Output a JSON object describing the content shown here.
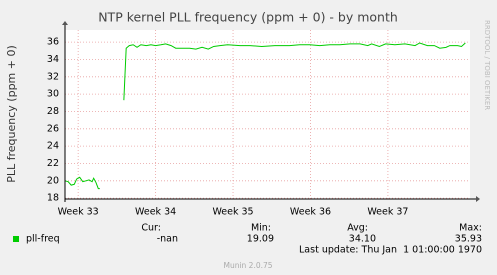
{
  "chart_data": {
    "type": "line",
    "title": "NTP kernel PLL frequency (ppm + 0) - by month",
    "y_label": "PLL frequency (ppm + 0)",
    "watermark": "RRDTOOL / TOBI OETIKER",
    "x": [
      32.83,
      32.87,
      32.91,
      32.95,
      32.98,
      33.02,
      33.06,
      33.1,
      33.14,
      33.18,
      33.2,
      33.23,
      33.26,
      33.28,
      33.45,
      33.59,
      33.62,
      33.66,
      33.71,
      33.76,
      33.81,
      33.88,
      33.94,
      34.0,
      34.07,
      34.13,
      34.2,
      34.26,
      34.34,
      34.44,
      34.52,
      34.6,
      34.68,
      34.75,
      34.83,
      34.93,
      35.09,
      35.22,
      35.37,
      35.54,
      35.73,
      35.86,
      35.99,
      36.12,
      36.25,
      36.38,
      36.51,
      36.64,
      36.74,
      36.79,
      36.89,
      36.97,
      37.09,
      37.22,
      37.35,
      37.41,
      37.51,
      37.6,
      37.67,
      37.75,
      37.8,
      37.9,
      37.95,
      38.0
    ],
    "series": [
      {
        "name": "pll-freq",
        "color": "#00cc00",
        "values": [
          20.0,
          19.9,
          19.5,
          19.6,
          20.2,
          20.4,
          19.9,
          20.0,
          20.1,
          19.9,
          20.3,
          19.8,
          19.1,
          19.1,
          null,
          29.3,
          35.3,
          35.6,
          35.7,
          35.4,
          35.7,
          35.6,
          35.7,
          35.6,
          35.7,
          35.8,
          35.6,
          35.3,
          35.3,
          35.3,
          35.2,
          35.4,
          35.2,
          35.5,
          35.6,
          35.7,
          35.6,
          35.6,
          35.5,
          35.6,
          35.6,
          35.7,
          35.7,
          35.6,
          35.7,
          35.7,
          35.8,
          35.8,
          35.6,
          35.8,
          35.5,
          35.8,
          35.7,
          35.8,
          35.6,
          35.9,
          35.6,
          35.6,
          35.3,
          35.4,
          35.6,
          35.6,
          35.5,
          35.9
        ]
      }
    ],
    "xlim": [
      32.83,
      38.06
    ],
    "xticks": [
      {
        "value": 33,
        "label": "Week 33"
      },
      {
        "value": 34,
        "label": "Week 34"
      },
      {
        "value": 35,
        "label": "Week 35"
      },
      {
        "value": 36,
        "label": "Week 36"
      },
      {
        "value": 37,
        "label": "Week 37"
      }
    ],
    "ylim": [
      17.9,
      37.4
    ],
    "yticks": [
      18,
      20,
      22,
      24,
      26,
      28,
      30,
      32,
      34,
      36
    ],
    "grid": true,
    "stats": {
      "headers": [
        "Cur:",
        "Min:",
        "Avg:",
        "Max:"
      ],
      "values": [
        "-nan",
        "19.09",
        "34.10",
        "35.93"
      ]
    },
    "last_update": "Last update: Thu Jan  1 01:00:00 1970",
    "footer": "Munin 2.0.75"
  }
}
